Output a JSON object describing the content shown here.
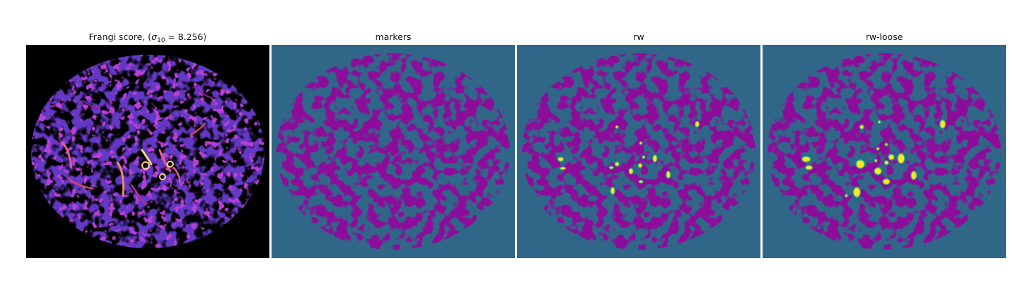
{
  "figure": {
    "panels": [
      {
        "title_prefix": "Frangi score, (",
        "title_symbol": "σ",
        "title_subscript": "10",
        "title_suffix": " = 8.256)",
        "colormap": "plasma",
        "colors": {
          "background": "#000000",
          "low": "#1e0a8c",
          "mid": "#7a0dab",
          "high": "#e8608a",
          "peak": "#fcd08a"
        }
      },
      {
        "title": "markers",
        "colors": {
          "background": "#306789",
          "foreground": "#440154"
        }
      },
      {
        "title": "rw",
        "colors": {
          "background": "#306789",
          "foreground": "#440154",
          "highlight": "#fde725",
          "highlight_edge": "#2fb47c"
        }
      },
      {
        "title": "rw-loose",
        "colors": {
          "background": "#306789",
          "foreground": "#440154",
          "highlight": "#fde725",
          "highlight_edge": "#2fb47c"
        }
      }
    ]
  }
}
